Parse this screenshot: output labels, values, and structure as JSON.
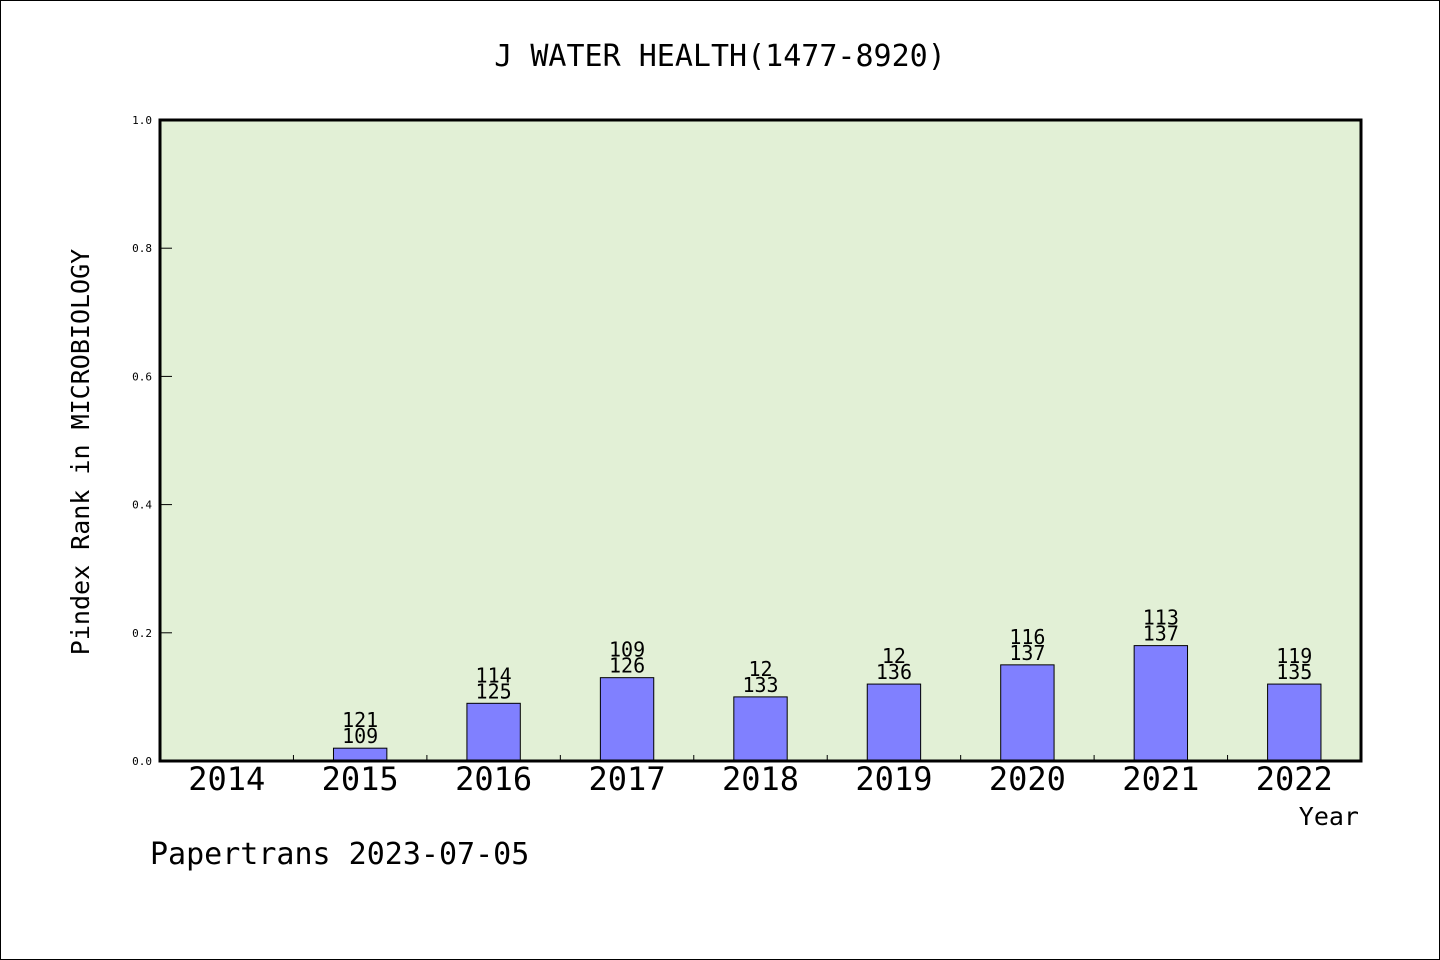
{
  "chart_data": {
    "type": "bar",
    "title": "J WATER HEALTH(1477-8920)",
    "xlabel": "Year",
    "ylabel": "Pindex Rank in MICROBIOLOGY",
    "ylim": [
      0,
      1.0
    ],
    "yticks": [
      "0.0",
      "0.2",
      "0.4",
      "0.6",
      "0.8",
      "1.0"
    ],
    "categories": [
      "2014",
      "2015",
      "2016",
      "2017",
      "2018",
      "2019",
      "2020",
      "2021",
      "2022"
    ],
    "values": [
      null,
      0.02,
      0.09,
      0.13,
      0.1,
      0.12,
      0.15,
      0.18,
      0.12
    ],
    "labels_top": [
      "",
      "121",
      "114",
      "109",
      "12",
      "12",
      "116",
      "113",
      "119"
    ],
    "labels_bottom": [
      "",
      "109",
      "125",
      "126",
      "133",
      "136",
      "137",
      "137",
      "135"
    ],
    "grid": false,
    "colors": {
      "plot_bg": "#e2f0d6",
      "bar": "#8080ff",
      "bar_edge": "#000000"
    }
  },
  "footer": {
    "credit": "Papertrans 2023-07-05"
  }
}
